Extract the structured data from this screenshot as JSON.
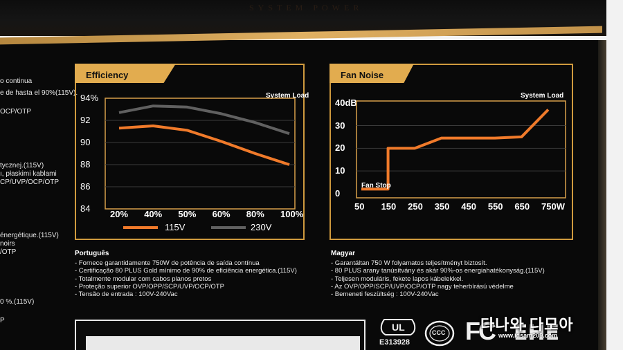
{
  "top_text": "SYSTEM POWER",
  "left_column": [
    {
      "text": "o continua",
      "y": 0
    },
    {
      "text": "e de hasta el 90%(115V).",
      "y": 1
    },
    {
      "text": "OCP/OTP",
      "y": 2
    },
    {
      "text": "tycznej.(115V)",
      "y": 3
    },
    {
      "text": "ı, płaskimi kablami",
      "y": 4
    },
    {
      "text": "CP/UVP/OCP/OTP",
      "y": 5
    },
    {
      "text": "énergétique.(115V)",
      "y": 6
    },
    {
      "text": "noirs",
      "y": 7
    },
    {
      "text": "/OTP",
      "y": 8
    },
    {
      "text": "0 %.(115V)",
      "y": 9
    },
    {
      "text": "P",
      "y": 10
    }
  ],
  "efficiency": {
    "title": "Efficiency",
    "load_label": "System Load",
    "y_ticks": [
      "94%",
      "92",
      "90",
      "88",
      "86",
      "84"
    ],
    "x_ticks": [
      "20%",
      "40%",
      "50%",
      "60%",
      "80%",
      "100%"
    ],
    "legend": [
      {
        "name": "115V",
        "color": "#f07a2a"
      },
      {
        "name": "230V",
        "color": "#606060"
      }
    ]
  },
  "fan_noise": {
    "title": "Fan Noise",
    "load_label": "System Load",
    "y_ticks": [
      "40dB",
      "30",
      "20",
      "10",
      "0"
    ],
    "x_ticks": [
      "50",
      "150",
      "250",
      "350",
      "450",
      "550",
      "650",
      "750W"
    ],
    "annotation": "Fan Stop",
    "color": "#f07a2a"
  },
  "chart_data": [
    {
      "type": "line",
      "title": "Efficiency",
      "categories": [
        "20%",
        "40%",
        "50%",
        "60%",
        "80%",
        "100%"
      ],
      "series": [
        {
          "name": "115V",
          "values": [
            91.3,
            91.5,
            91.1,
            90.1,
            89.0,
            88.0
          ]
        },
        {
          "name": "230V",
          "values": [
            92.7,
            93.3,
            93.2,
            92.6,
            91.8,
            90.8
          ]
        }
      ],
      "ylim": [
        84,
        94
      ]
    },
    {
      "type": "line",
      "title": "Fan Noise",
      "x": [
        50,
        150,
        150,
        250,
        350,
        450,
        550,
        650,
        750
      ],
      "series": [
        {
          "name": "",
          "values": [
            2,
            2,
            20,
            20,
            24.5,
            24.5,
            24.5,
            25,
            37
          ]
        }
      ],
      "xlabel": "System Load",
      "ylim": [
        0,
        40
      ]
    }
  ],
  "portugues": {
    "title": "Português",
    "items": [
      "- Fornece garantidamente 750W de potência de saída contínua",
      "- Certificação 80 PLUS Gold mínimo de 90% de eficiência energética.(115V)",
      "- Totalmente modular com cabos planos pretos",
      "- Proteção superior OVP/OPP/SCP/UVP/OCP/OTP",
      "- Tensão de entrada : 100V-240Vac"
    ]
  },
  "magyar": {
    "title": "Magyar",
    "items": [
      "- Garantáltan 750 W folyamatos teljesítményt biztosít.",
      "- 80 PLUS arany tanúsítvány és akár 90%-os energiahatékonyság.(115V)",
      "- Teljesen moduláris, fekete lapos kábelekkel.",
      "- Az OVP/OPP/SCP/UVP/OCP/OTP nagy teherbírású védelme",
      "- Bemeneti feszültség : 100V-240Vac"
    ]
  },
  "certs": {
    "ul": "UL",
    "ul_code": "E313928",
    "ccc": "CCC",
    "fc": "FC",
    "eac": "EHE"
  },
  "watermark": {
    "text": "다나와 다모아",
    "url": "www.idsam209.com"
  }
}
